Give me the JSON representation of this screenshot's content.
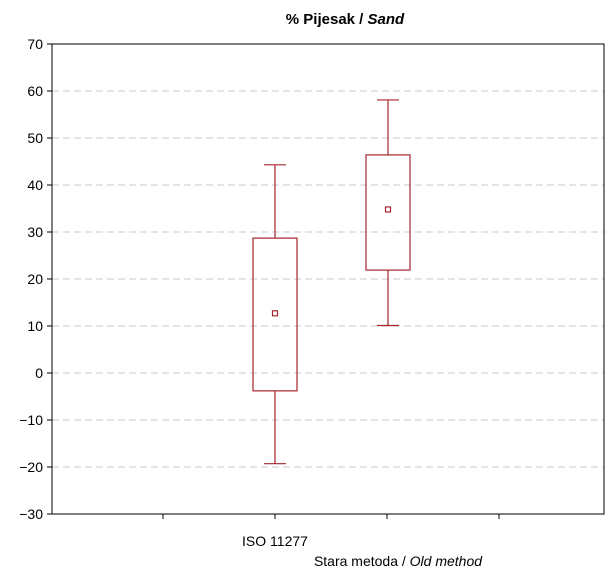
{
  "chart_data": {
    "type": "box",
    "title_main": "% Pijesak / ",
    "title_sub": "Sand",
    "ylim": [
      -30,
      70
    ],
    "yticks": [
      -30,
      -20,
      -10,
      0,
      10,
      20,
      30,
      40,
      50,
      60,
      70
    ],
    "grid": true,
    "categories": [
      {
        "main": "ISO 11277",
        "sub": ""
      },
      {
        "main": "Stara metoda / ",
        "sub": "Old method"
      }
    ],
    "series": [
      {
        "category": "ISO 11277",
        "whisker_low": -19.3,
        "box_low": -3.8,
        "center": 12.7,
        "box_high": 28.7,
        "whisker_high": 44.3
      },
      {
        "category": "Stara metoda / Old method",
        "whisker_low": 10.1,
        "box_low": 21.9,
        "center": 34.8,
        "box_high": 46.4,
        "whisker_high": 58.1
      }
    ],
    "color": "#a5262c"
  }
}
